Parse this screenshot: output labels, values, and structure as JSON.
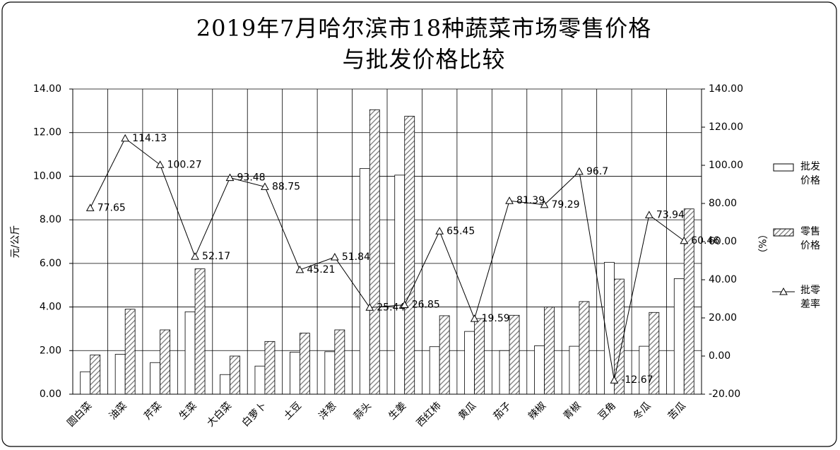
{
  "chart_data": {
    "type": "bar_line",
    "title": "2019年7月哈尔滨市18种蔬菜市场零售价格\n与批发价格比较",
    "y_label": "元/公斤",
    "y2_label": "（%）",
    "categories": [
      "圆白菜",
      "油菜",
      "芹菜",
      "生菜",
      "大白菜",
      "白萝卜",
      "土豆",
      "洋葱",
      "蒜头",
      "生姜",
      "西红柿",
      "黄瓜",
      "茄子",
      "辣椒",
      "青椒",
      "豆角",
      "冬瓜",
      "苦瓜"
    ],
    "series": [
      {
        "name": "批发价格",
        "color": "#ffffff",
        "values": [
          1.03,
          1.83,
          1.45,
          3.78,
          0.9,
          1.29,
          1.93,
          1.95,
          10.35,
          10.05,
          2.18,
          2.88,
          2.0,
          2.22,
          2.2,
          6.05,
          2.2,
          5.3
        ]
      },
      {
        "name": "零售价格",
        "color": "#999999",
        "hatch": true,
        "values": [
          1.8,
          3.9,
          2.95,
          5.75,
          1.75,
          2.42,
          2.8,
          2.95,
          13.05,
          12.75,
          3.6,
          3.47,
          3.62,
          4.0,
          4.25,
          5.28,
          3.75,
          8.5
        ]
      },
      {
        "name": "批零差率",
        "color": "#000000",
        "axis": "y2",
        "marker": "triangle",
        "values": [
          77.65,
          114.13,
          100.27,
          52.17,
          93.48,
          88.75,
          45.21,
          51.84,
          25.44,
          26.85,
          65.45,
          19.59,
          81.39,
          79.29,
          96.7,
          -12.67,
          73.94,
          60.46
        ]
      }
    ],
    "ylim": [
      0,
      14
    ],
    "yticks": [
      {
        "value": 0,
        "label": "0.00"
      },
      {
        "value": 2,
        "label": "2.00"
      },
      {
        "value": 4,
        "label": "4.00"
      },
      {
        "value": 6,
        "label": "6.00"
      },
      {
        "value": 8,
        "label": "8.00"
      },
      {
        "value": 10,
        "label": "10.00"
      },
      {
        "value": 12,
        "label": "12.00"
      },
      {
        "value": 14,
        "label": "14.00"
      }
    ],
    "y2lim": [
      -20,
      140
    ],
    "y2ticks": [
      {
        "value": -20,
        "label": "-20.00"
      },
      {
        "value": 0,
        "label": "0.00"
      },
      {
        "value": 20,
        "label": "20.00"
      },
      {
        "value": 40,
        "label": "40.00"
      },
      {
        "value": 60,
        "label": "60.00"
      },
      {
        "value": 80,
        "label": "80.00"
      },
      {
        "value": 100,
        "label": "100.00"
      },
      {
        "value": 120,
        "label": "120.00"
      },
      {
        "value": 140,
        "label": "140.00"
      }
    ],
    "grid": true
  }
}
